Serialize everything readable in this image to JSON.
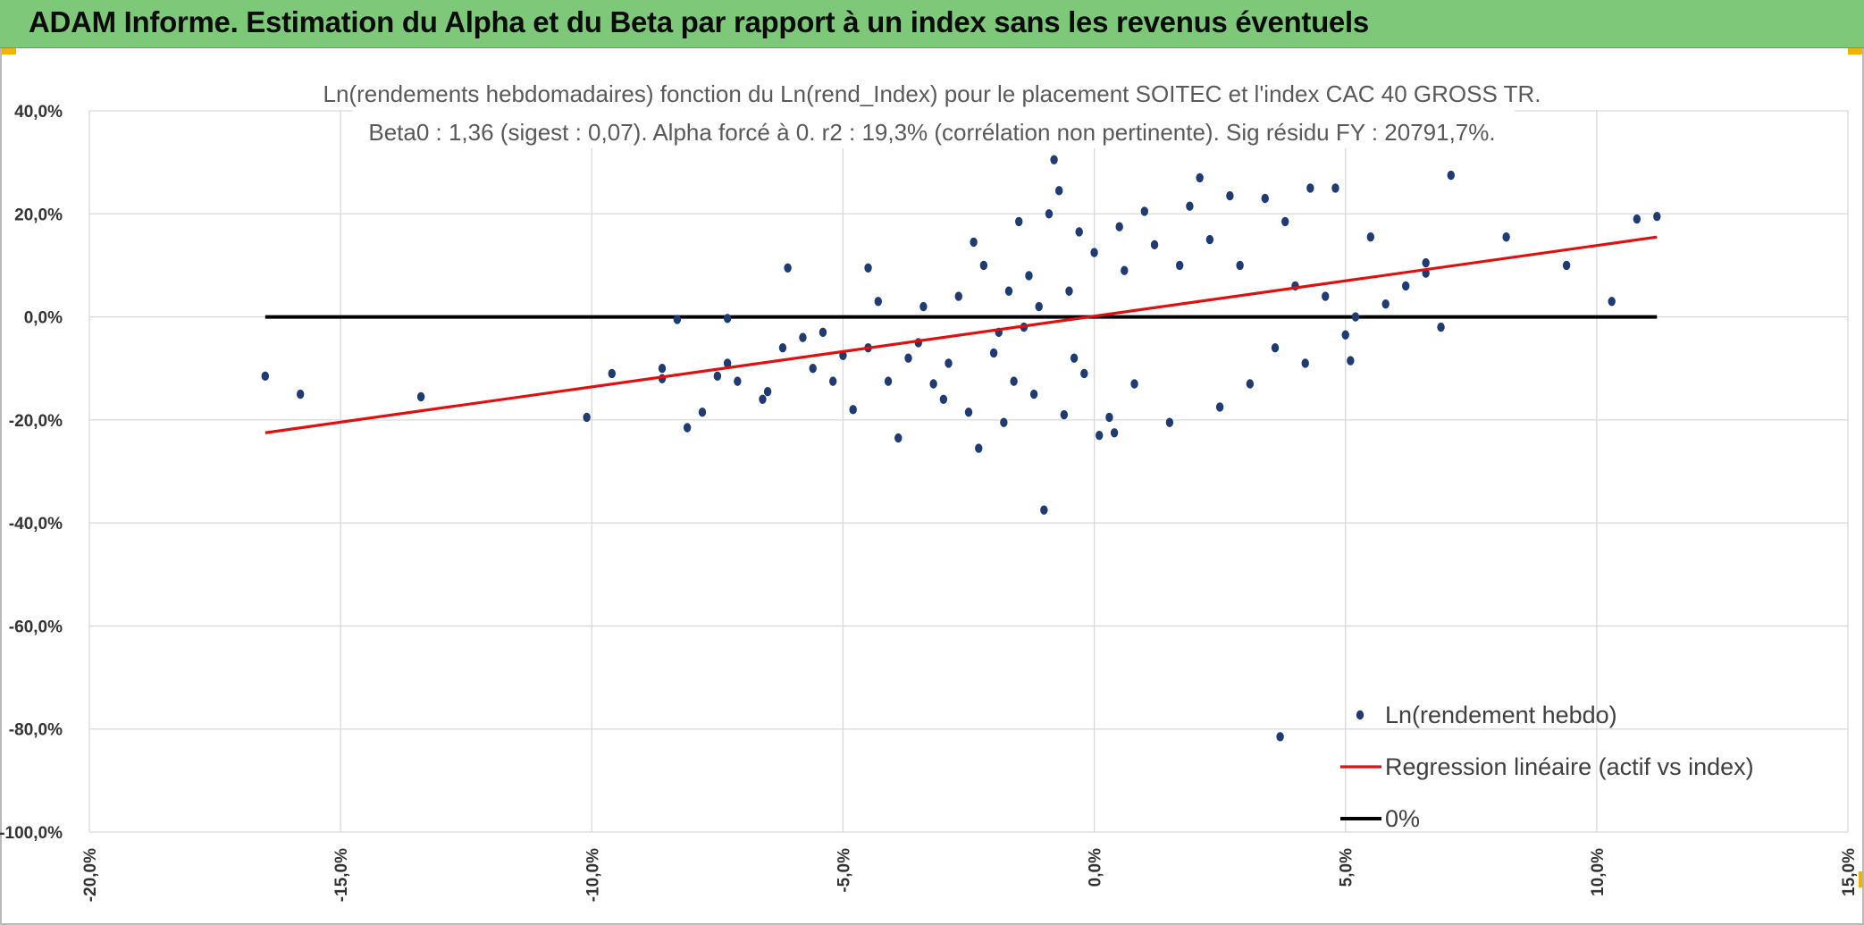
{
  "header": {
    "title": "ADAM Informe. Estimation du Alpha et du Beta par rapport à un index sans les revenus éventuels",
    "accent": "#7ec87a"
  },
  "chart_data": {
    "type": "scatter",
    "title_line1": "Ln(rendements hebdomadaires) fonction du Ln(rend_Index) pour le placement SOITEC et l'index CAC 40 GROSS TR.",
    "title_line2": "Beta0 : 1,36 (sigest : 0,07). Alpha forcé à 0. r2 : 19,3% (corrélation non pertinente). Sig résidu FY : 20791,7%.",
    "xlim": [
      -20,
      15
    ],
    "ylim": [
      -100,
      40
    ],
    "x_ticks": [
      -20,
      -15,
      -10,
      -5,
      0,
      5,
      10,
      15
    ],
    "y_ticks": [
      40,
      20,
      0,
      -20,
      -40,
      -60,
      -80,
      -100
    ],
    "x_tick_labels": [
      "-20,0%",
      "-15,0%",
      "-10,0%",
      "-5,0%",
      "0,0%",
      "5,0%",
      "10,0%",
      "15,0%"
    ],
    "y_tick_labels": [
      "40,0%",
      "20,0%",
      "0,0%",
      "-20,0%",
      "-40,0%",
      "-60,0%",
      "-80,0%",
      "-100,0%"
    ],
    "grid": true,
    "legend_position": "bottom-right",
    "series": [
      {
        "name": "Ln(rendement hebdo)",
        "kind": "scatter",
        "color": "#1f3b73",
        "points": [
          [
            -16.5,
            -11.5
          ],
          [
            -15.8,
            -15
          ],
          [
            -13.4,
            -15.5
          ],
          [
            -10.1,
            -19.5
          ],
          [
            -9.6,
            -11
          ],
          [
            -8.6,
            -10
          ],
          [
            -8.6,
            -12
          ],
          [
            -8.3,
            -0.5
          ],
          [
            -8.1,
            -21.5
          ],
          [
            -7.8,
            -18.5
          ],
          [
            -7.5,
            -11.5
          ],
          [
            -7.3,
            -9
          ],
          [
            -7.3,
            -0.3
          ],
          [
            -7.1,
            -12.5
          ],
          [
            -6.6,
            -16
          ],
          [
            -6.5,
            -14.5
          ],
          [
            -6.2,
            -6
          ],
          [
            -6.1,
            9.5
          ],
          [
            -5.8,
            -4
          ],
          [
            -5.6,
            -10
          ],
          [
            -5.4,
            -3
          ],
          [
            -5.2,
            -12.5
          ],
          [
            -5.0,
            -7.5
          ],
          [
            -4.8,
            -18
          ],
          [
            -4.5,
            9.5
          ],
          [
            -4.5,
            -6
          ],
          [
            -4.3,
            3
          ],
          [
            -4.1,
            -12.5
          ],
          [
            -3.9,
            -23.5
          ],
          [
            -3.7,
            -8
          ],
          [
            -3.5,
            -5
          ],
          [
            -3.4,
            2
          ],
          [
            -3.2,
            -13
          ],
          [
            -3.0,
            -16
          ],
          [
            -2.9,
            -9
          ],
          [
            -2.7,
            4
          ],
          [
            -2.5,
            -18.5
          ],
          [
            -2.4,
            14.5
          ],
          [
            -2.3,
            -25.5
          ],
          [
            -2.2,
            10
          ],
          [
            -2.0,
            -7
          ],
          [
            -1.9,
            -3
          ],
          [
            -1.8,
            -20.5
          ],
          [
            -1.7,
            5
          ],
          [
            -1.6,
            -12.5
          ],
          [
            -1.5,
            18.5
          ],
          [
            -1.4,
            -2
          ],
          [
            -1.3,
            8
          ],
          [
            -1.2,
            -15
          ],
          [
            -1.1,
            2
          ],
          [
            -1.0,
            -37.5
          ],
          [
            -0.9,
            20
          ],
          [
            -0.8,
            30.5
          ],
          [
            -0.7,
            24.5
          ],
          [
            -0.6,
            -19
          ],
          [
            -0.5,
            5
          ],
          [
            -0.4,
            -8
          ],
          [
            -0.3,
            16.5
          ],
          [
            -0.2,
            -11
          ],
          [
            0.0,
            12.5
          ],
          [
            0.1,
            -23
          ],
          [
            0.3,
            -19.5
          ],
          [
            0.4,
            -22.5
          ],
          [
            0.5,
            17.5
          ],
          [
            0.6,
            9
          ],
          [
            0.8,
            -13
          ],
          [
            1.0,
            20.5
          ],
          [
            1.2,
            14
          ],
          [
            1.5,
            -20.5
          ],
          [
            1.7,
            10
          ],
          [
            1.9,
            21.5
          ],
          [
            2.1,
            27
          ],
          [
            2.3,
            15
          ],
          [
            2.5,
            -17.5
          ],
          [
            2.7,
            23.5
          ],
          [
            2.9,
            10
          ],
          [
            3.1,
            -13
          ],
          [
            3.4,
            23
          ],
          [
            3.6,
            -6
          ],
          [
            3.7,
            -81.5
          ],
          [
            3.8,
            18.5
          ],
          [
            4.0,
            6
          ],
          [
            4.2,
            -9
          ],
          [
            4.3,
            25
          ],
          [
            4.6,
            4
          ],
          [
            4.8,
            25
          ],
          [
            5.0,
            -3.5
          ],
          [
            5.1,
            -8.5
          ],
          [
            5.2,
            0
          ],
          [
            5.5,
            15.5
          ],
          [
            5.8,
            2.5
          ],
          [
            6.2,
            6
          ],
          [
            6.6,
            8.5
          ],
          [
            6.6,
            10.5
          ],
          [
            6.9,
            -2
          ],
          [
            7.1,
            27.5
          ],
          [
            8.2,
            15.5
          ],
          [
            9.4,
            10
          ],
          [
            10.3,
            3
          ],
          [
            10.8,
            19
          ],
          [
            11.2,
            19.5
          ]
        ]
      },
      {
        "name": "Regression linéaire (actif vs index)",
        "kind": "line",
        "color": "#e01010",
        "points": [
          [
            -16.5,
            -22.5
          ],
          [
            11.2,
            15.5
          ]
        ]
      },
      {
        "name": "0%",
        "kind": "line",
        "color": "#000000",
        "points": [
          [
            -16.5,
            0
          ],
          [
            11.2,
            0
          ]
        ]
      }
    ]
  }
}
